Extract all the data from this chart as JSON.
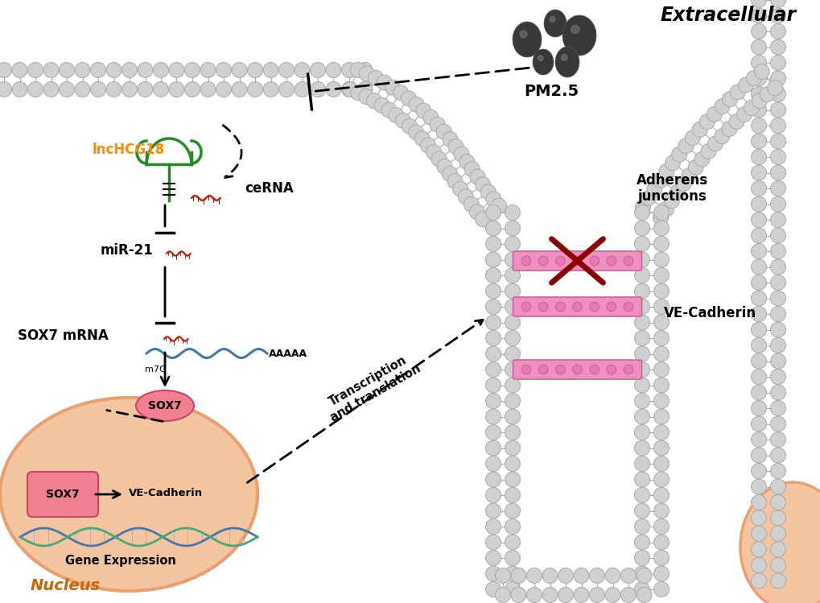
{
  "background_color": "#ffffff",
  "extracellular_label": "Extracellular",
  "pm25_label": "PM2.5",
  "lnchcg18_label": "lncHCG18",
  "mir21_label": "miR-21",
  "sox7mrna_label": "SOX7 mRNA",
  "sox7_label": "SOX7",
  "cerna_label": "ceRNA",
  "adherens_label": "Adherens\njunctions",
  "ve_cadherin_label": "VE-Cadherin",
  "transcription_label": "Transcription\nand translation",
  "gene_expression_label": "Gene Expression",
  "nucleus_label": "Nucleus",
  "m7g_label": "m7G",
  "aaaaa_label": "AAAAA",
  "membrane_ball_color": "#d0d0d0",
  "membrane_edge_color": "#aaaaaa",
  "pm25_color": "#404040",
  "nucleus_fill": "#f5c5a0",
  "nucleus_edge": "#e8a070",
  "sox7_fill": "#f08090",
  "sox7_edge": "#cc4466",
  "green_color": "#228B22",
  "red_color": "#cc2200",
  "blue_color": "#4477aa",
  "green2_color": "#44aa77",
  "ve_bar_color": "#f090c0",
  "ve_bar_edge": "#d060a0",
  "ve_dot_color": "#e878b8",
  "x_mark_color": "#8b0000",
  "lnchcg18_text_color": "#ff8c00",
  "nucleus_text_color": "#cc6600",
  "dashed_line_color": "#000000",
  "arrow_color": "#000000"
}
